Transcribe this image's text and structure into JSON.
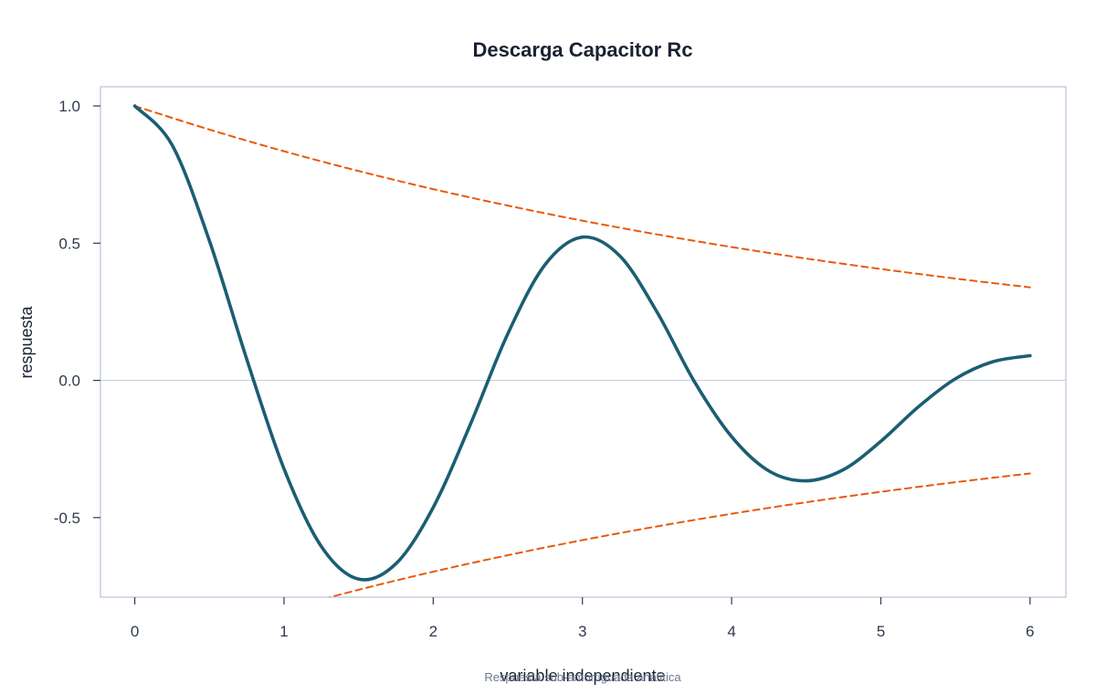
{
  "chart_data": {
    "type": "line",
    "title": "Descarga Capacitor Rc",
    "xlabel": "variable independiente",
    "ylabel": "respuesta",
    "caption": "Respuesta sub-amortiguada analítica",
    "xlim": [
      -0.23,
      6.24
    ],
    "ylim": [
      -0.79,
      1.07
    ],
    "x_ticks": [
      0,
      1,
      2,
      3,
      4,
      5,
      6
    ],
    "y_ticks": [
      -0.5,
      0.0,
      0.5,
      1.0
    ],
    "y_tick_labels": [
      "-0.5",
      "0.0",
      "0.5",
      "1.0"
    ],
    "grid": false,
    "legend": "none",
    "series": [
      {
        "role": "response",
        "style": "solid",
        "color": "#1b5e73",
        "x": [
          0,
          0.25,
          0.5,
          0.75,
          1.0,
          1.25,
          1.5,
          1.75,
          2.0,
          2.25,
          2.5,
          2.75,
          3.0,
          3.25,
          3.5,
          3.75,
          4.0,
          4.25,
          4.5,
          4.75,
          5.0,
          5.25,
          5.5,
          5.75,
          6.0
        ],
        "y": [
          1.0,
          0.858,
          0.509,
          0.078,
          -0.322,
          -0.605,
          -0.724,
          -0.668,
          -0.463,
          -0.159,
          0.17,
          0.422,
          0.522,
          0.454,
          0.249,
          -0.004,
          -0.205,
          -0.33,
          -0.366,
          -0.325,
          -0.222,
          -0.097,
          0.006,
          0.068,
          0.09
        ]
      },
      {
        "role": "upper-envelope",
        "style": "dashed",
        "color": "#e8590c",
        "x": [
          0,
          0.5,
          1,
          1.5,
          2,
          2.5,
          3,
          3.5,
          4,
          4.5,
          5,
          5.5,
          6
        ],
        "y": [
          1.0,
          0.914,
          0.835,
          0.763,
          0.697,
          0.637,
          0.582,
          0.532,
          0.486,
          0.444,
          0.406,
          0.371,
          0.339
        ]
      },
      {
        "role": "lower-envelope",
        "style": "dashed",
        "color": "#e8590c",
        "x": [
          0,
          0.5,
          1,
          1.5,
          2,
          2.5,
          3,
          3.5,
          4,
          4.5,
          5,
          5.5,
          6
        ],
        "y": [
          -1.0,
          -0.914,
          -0.835,
          -0.763,
          -0.697,
          -0.637,
          -0.582,
          -0.532,
          -0.486,
          -0.444,
          -0.406,
          -0.371,
          -0.339
        ]
      }
    ],
    "colors": {
      "frame": "#b8c2d6",
      "zero_line": "#c7d0e0",
      "text": "#1a2233"
    }
  }
}
